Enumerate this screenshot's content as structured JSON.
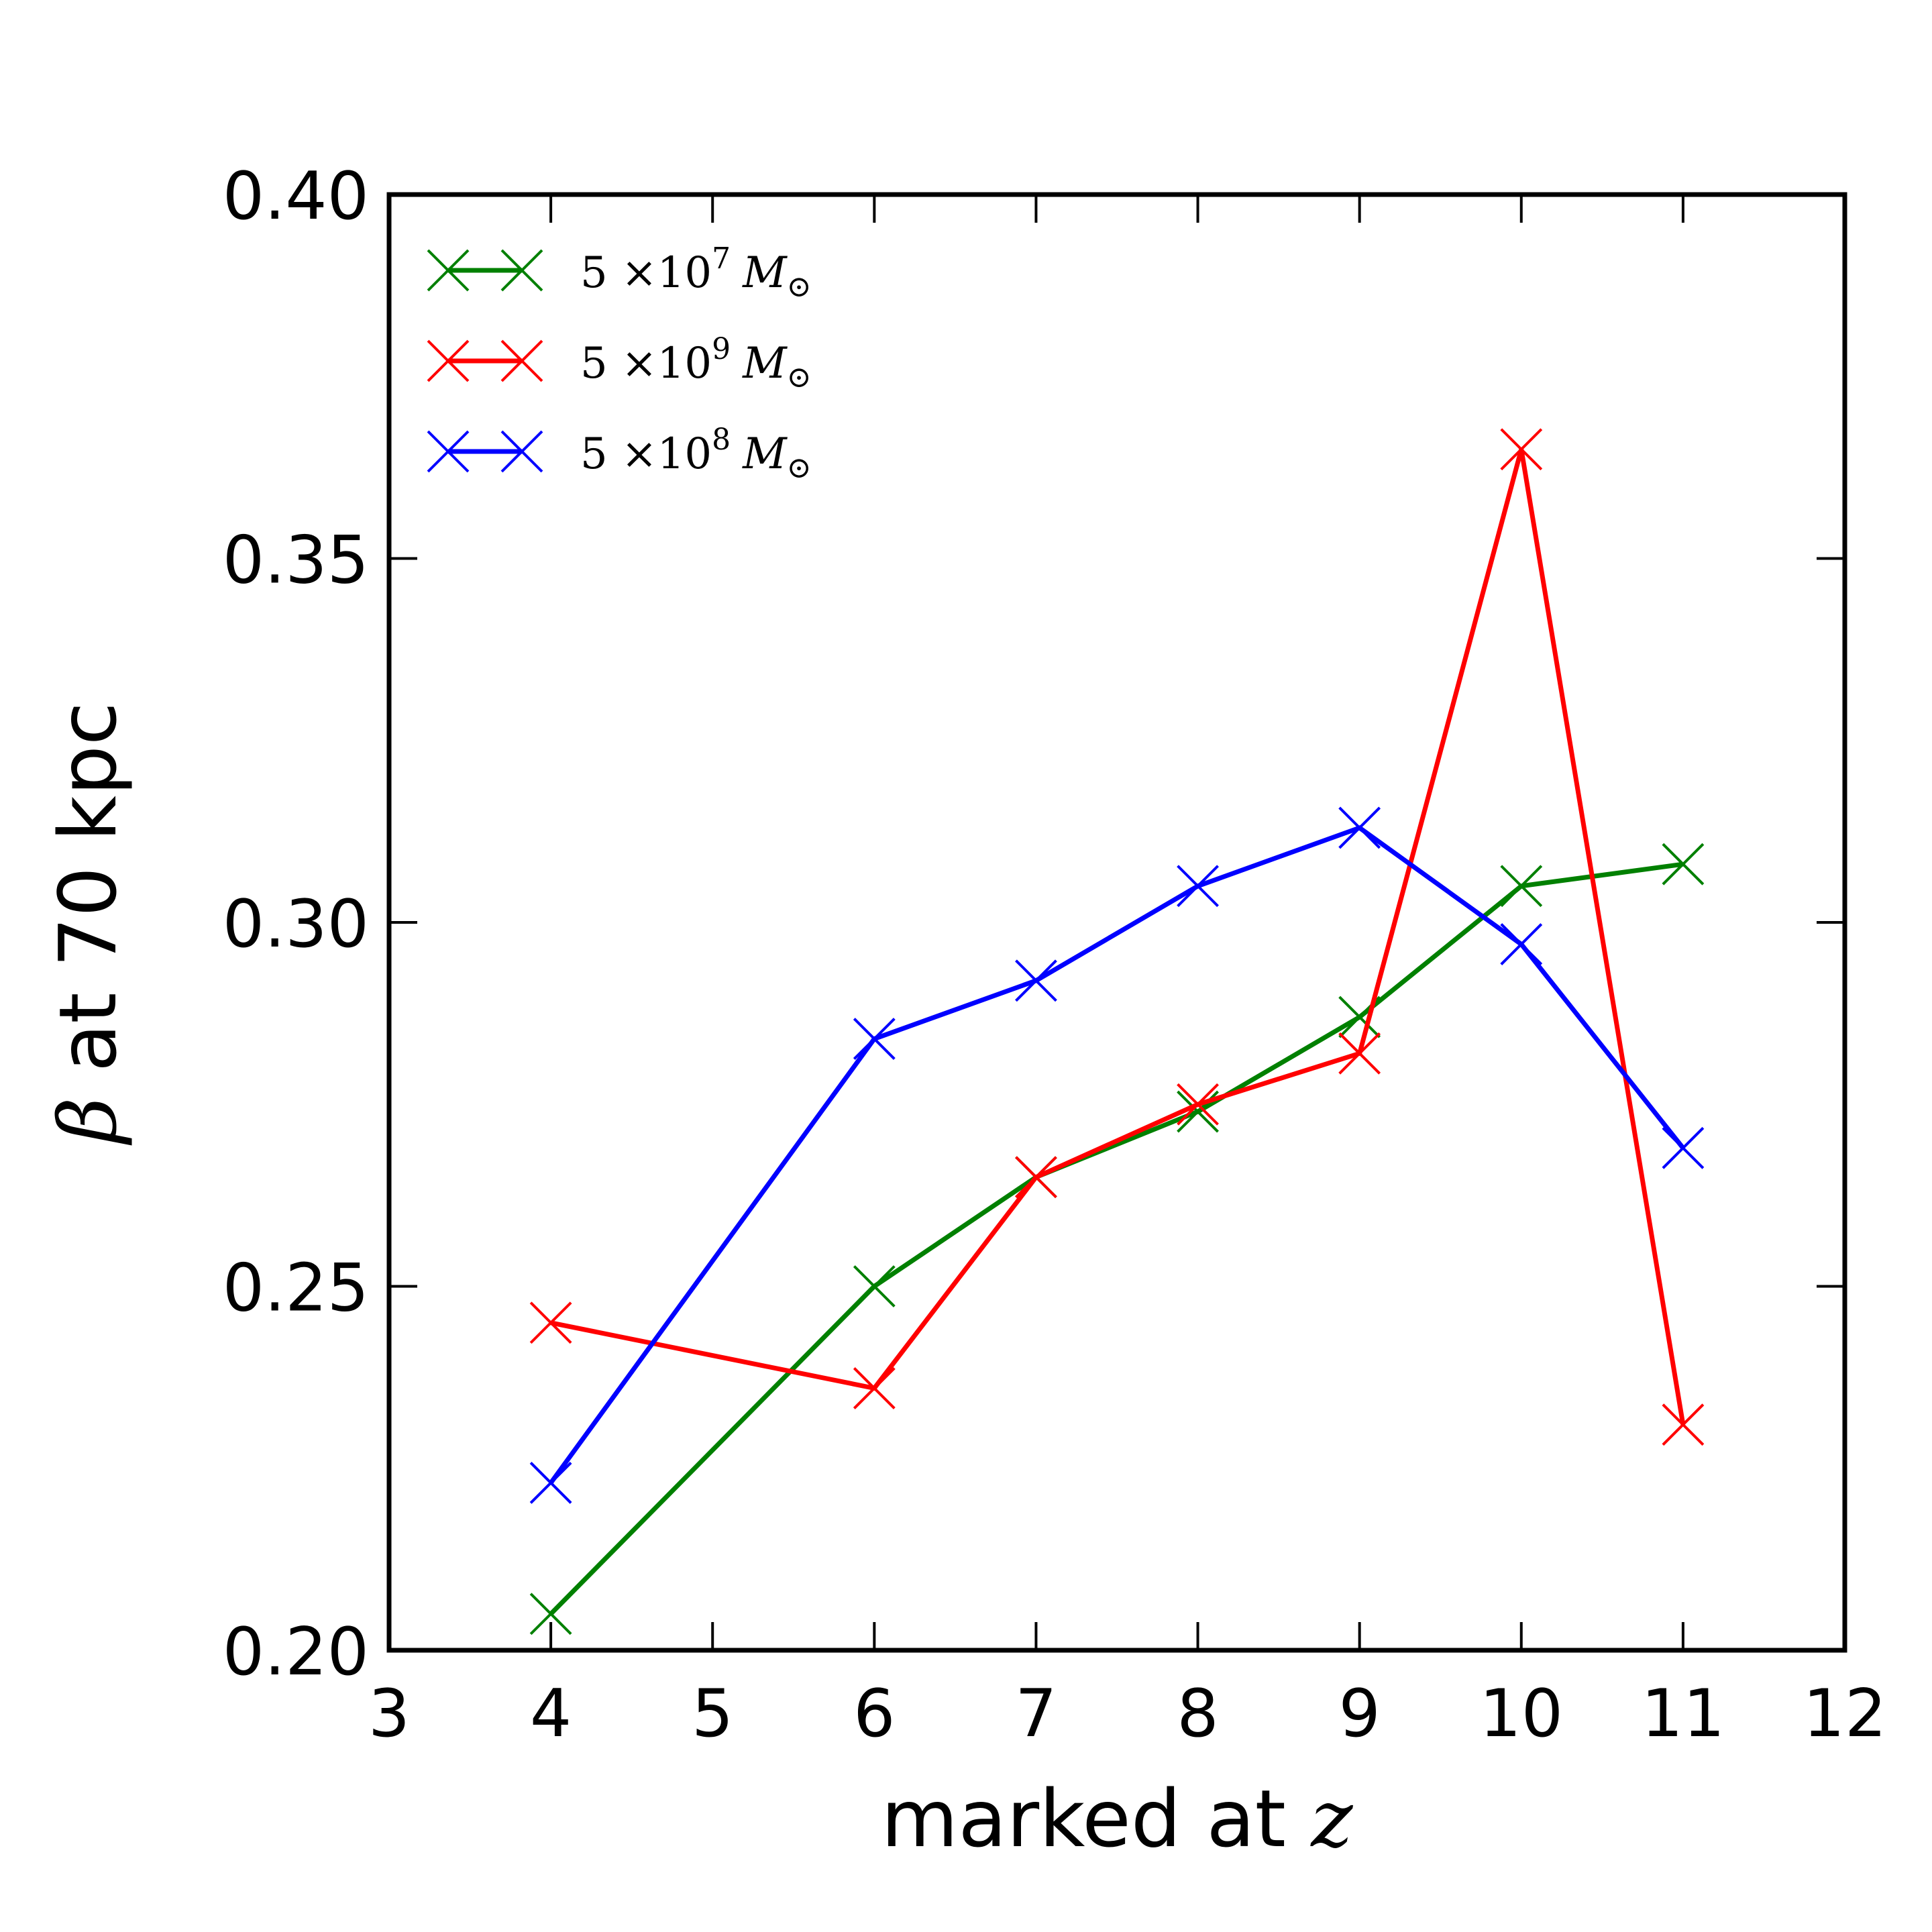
{
  "chart_data": {
    "type": "line",
    "title": "",
    "xlabel": "marked at z",
    "ylabel": "β at 70 kpc",
    "xlim": [
      3,
      12
    ],
    "ylim": [
      0.2,
      0.4
    ],
    "xticks": [
      "3",
      "4",
      "5",
      "6",
      "7",
      "8",
      "9",
      "10",
      "11",
      "12"
    ],
    "yticks": [
      "0.20",
      "0.25",
      "0.30",
      "0.35",
      "0.40"
    ],
    "grid": false,
    "legend_position": "top-left",
    "marker": "x",
    "series": [
      {
        "name": "5 ×10^7 M☉",
        "color": "#008000",
        "x": [
          4,
          6,
          7,
          8,
          9,
          10,
          11
        ],
        "y": [
          0.205,
          0.25,
          0.265,
          0.274,
          0.287,
          0.305,
          0.308
        ]
      },
      {
        "name": "5 ×10^9 M☉",
        "color": "#ff0000",
        "x": [
          4,
          6,
          7,
          8,
          9,
          10,
          11
        ],
        "y": [
          0.245,
          0.236,
          0.265,
          0.275,
          0.282,
          0.365,
          0.231
        ]
      },
      {
        "name": "5 ×10^8 M☉",
        "color": "#0000ff",
        "x": [
          4,
          6,
          7,
          8,
          9,
          10,
          11
        ],
        "y": [
          0.223,
          0.284,
          0.292,
          0.305,
          0.313,
          0.297,
          0.269
        ]
      }
    ]
  },
  "legend": [
    {
      "base": "5 ×10",
      "exp": "7",
      "unit": "M",
      "sun": "⊙"
    },
    {
      "base": "5 ×10",
      "exp": "9",
      "unit": "M",
      "sun": "⊙"
    },
    {
      "base": "5 ×10",
      "exp": "8",
      "unit": "M",
      "sun": "⊙"
    }
  ],
  "axis_text": {
    "x_prefix": "marked at ",
    "x_var": "z",
    "y_var": "β",
    "y_suffix": " at 70 kpc"
  }
}
